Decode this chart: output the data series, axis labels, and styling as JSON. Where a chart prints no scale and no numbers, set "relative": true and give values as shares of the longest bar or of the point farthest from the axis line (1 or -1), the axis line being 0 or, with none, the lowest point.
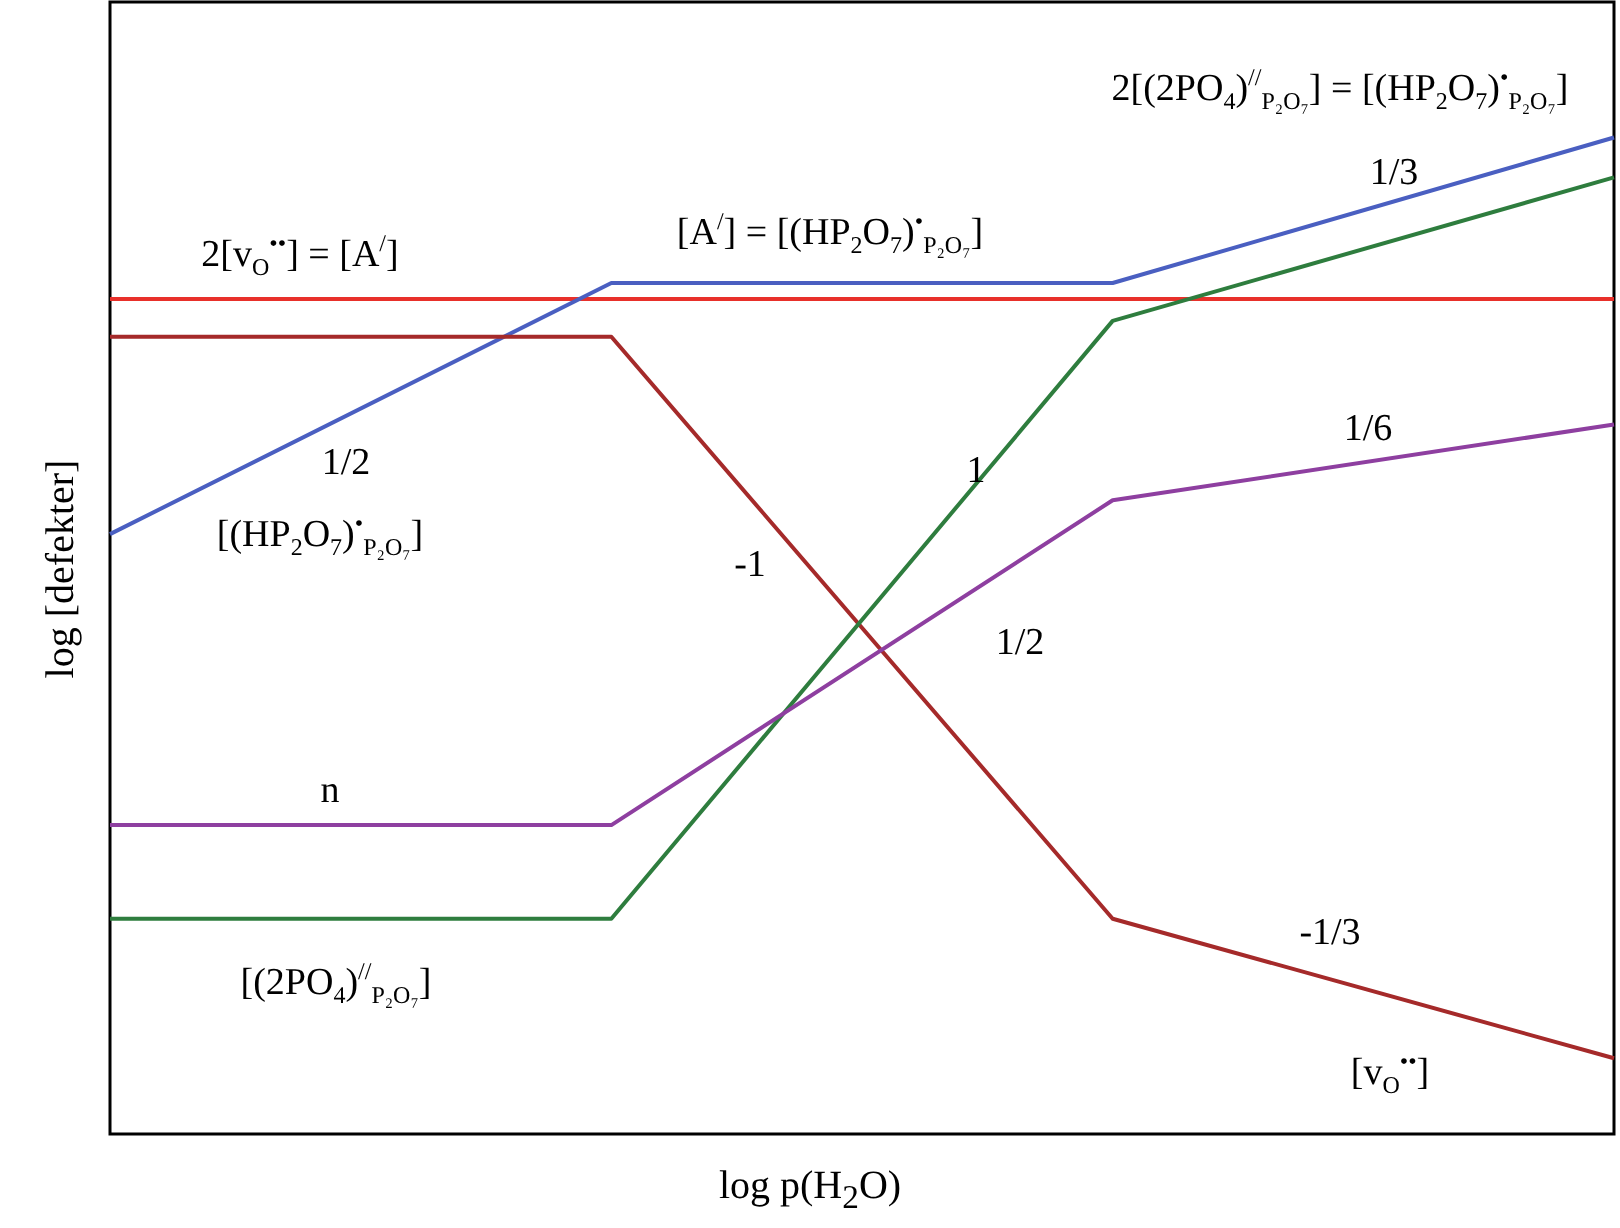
{
  "chart_data": {
    "type": "line",
    "relative": true,
    "xlabel": "log p(H$_{2}$O)",
    "ylabel": "log [defekter]",
    "categories": [
      null,
      null,
      null,
      null
    ],
    "series": [
      {
        "color": "#e8302a",
        "values": [
          0.838,
          0.838,
          0.838,
          0.838
        ]
      },
      {
        "color": "#4a5fc1",
        "values": [
          0.602,
          0.854,
          0.854,
          1.0
        ]
      },
      {
        "color": "#a52a2a",
        "values": [
          0.8,
          0.8,
          0.216,
          0.076
        ]
      },
      {
        "color": "#2e7d3e",
        "values": [
          0.216,
          0.216,
          0.816,
          0.96
        ]
      },
      {
        "color": "#8e3fa0",
        "values": [
          0.31,
          0.31,
          0.636,
          0.712
        ]
      }
    ],
    "annotations": [
      "2[v$_{O}$$^{••}$] = [A$^{/}$]",
      "[A$^{/}$] = [(HP$_{2}$O$_{7}$)$^{•}$$_{P₂O₇}$]",
      "2[(2PO$_{4}$)$^{//}$$_{P₂O₇}$] = [(HP$_{2}$O$_{7}$)$^{•}$$_{P₂O₇}$]",
      "1/3",
      "1/2",
      "[(HP$_{2}$O$_{7}$)$^{•}$$_{P₂O₇}$]",
      "1",
      "-1",
      "1/6",
      "1/2",
      "n",
      "[(2PO$_{4}$)$^{//}$$_{P₂O₇}$]",
      "-1/3",
      "[v$_{O}$$^{••}$]"
    ]
  }
}
